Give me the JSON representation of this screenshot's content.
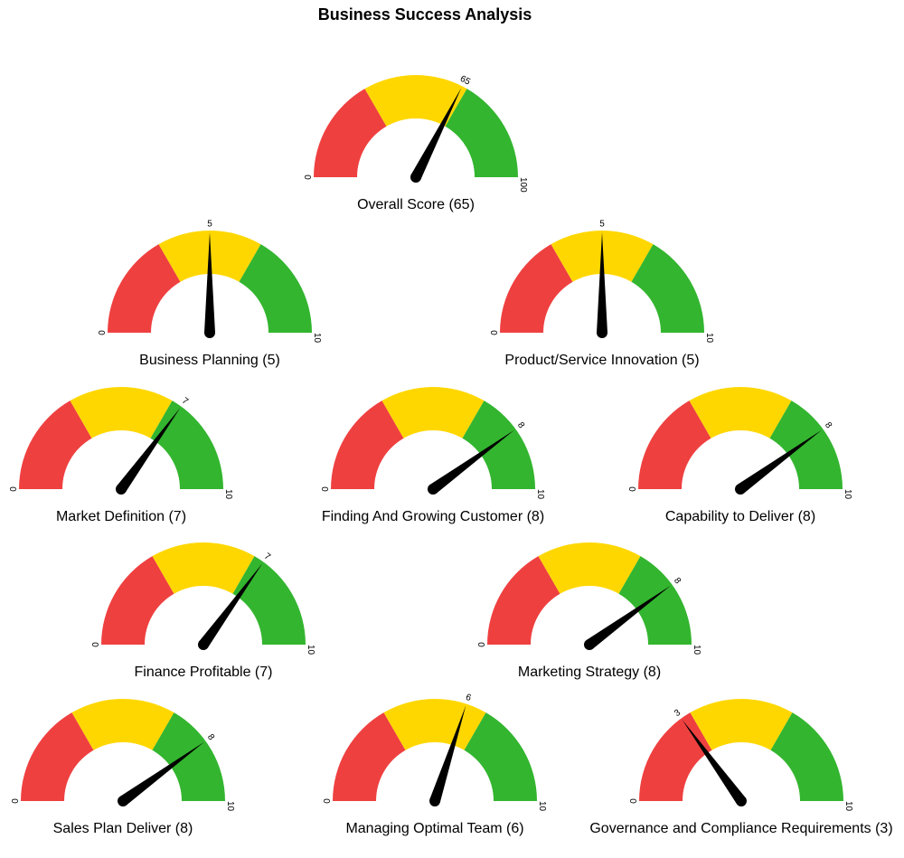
{
  "title": "Business Success Analysis",
  "colors": {
    "low": "#ef4040",
    "mid": "#ffd700",
    "high": "#33b52f",
    "needle": "#000000"
  },
  "chart_data": {
    "type": "gauge",
    "gauges": [
      {
        "label": "Overall Score (65)",
        "value": 65,
        "min": 0,
        "max": 100,
        "min_label": "0",
        "max_label": "100",
        "value_label": "65"
      },
      {
        "label": "Business Planning (5)",
        "value": 5,
        "min": 0,
        "max": 10,
        "min_label": "0",
        "max_label": "10",
        "value_label": "5"
      },
      {
        "label": "Product/Service Innovation (5)",
        "value": 5,
        "min": 0,
        "max": 10,
        "min_label": "0",
        "max_label": "10",
        "value_label": "5"
      },
      {
        "label": "Market Definition (7)",
        "value": 7,
        "min": 0,
        "max": 10,
        "min_label": "0",
        "max_label": "10",
        "value_label": "7"
      },
      {
        "label": "Finding And Growing Customer (8)",
        "value": 8,
        "min": 0,
        "max": 10,
        "min_label": "0",
        "max_label": "10",
        "value_label": "8"
      },
      {
        "label": "Capability to Deliver (8)",
        "value": 8,
        "min": 0,
        "max": 10,
        "min_label": "0",
        "max_label": "10",
        "value_label": "8"
      },
      {
        "label": "Finance Profitable (7)",
        "value": 7,
        "min": 0,
        "max": 10,
        "min_label": "0",
        "max_label": "10",
        "value_label": "7"
      },
      {
        "label": "Marketing Strategy (8)",
        "value": 8,
        "min": 0,
        "max": 10,
        "min_label": "0",
        "max_label": "10",
        "value_label": "8"
      },
      {
        "label": "Sales Plan Deliver (8)",
        "value": 8,
        "min": 0,
        "max": 10,
        "min_label": "0",
        "max_label": "10",
        "value_label": "8"
      },
      {
        "label": "Managing Optimal Team (6)",
        "value": 6,
        "min": 0,
        "max": 10,
        "min_label": "0",
        "max_label": "10",
        "value_label": "6"
      },
      {
        "label": "Governance and Compliance Requirements (3)",
        "value": 3,
        "min": 0,
        "max": 10,
        "min_label": "0",
        "max_label": "10",
        "value_label": "3"
      }
    ]
  }
}
